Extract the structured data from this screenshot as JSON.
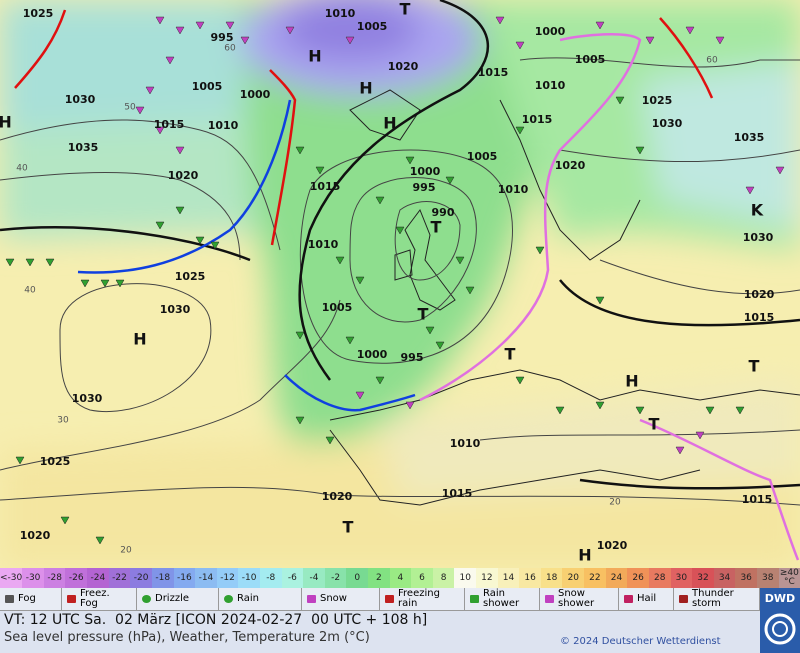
{
  "map": {
    "isobar_labels": [
      1025,
      1010,
      1005,
      995,
      1000,
      1020,
      1015,
      1005,
      1005,
      1000,
      1030,
      1010,
      1025,
      1010,
      1015,
      1015,
      1030,
      1035,
      1035,
      1020,
      1005,
      1000,
      995,
      1020,
      1015,
      1010,
      990,
      1030,
      1010,
      1025,
      1030,
      1005,
      1020,
      1015,
      1000,
      995,
      1030,
      1010,
      1025,
      1015,
      1020,
      1015,
      1020,
      1020
    ],
    "center_labels": [
      "T",
      "H",
      "H",
      "H",
      "H",
      "T",
      "T",
      "T",
      "H",
      "T",
      "T",
      "T",
      "H",
      "K",
      "H"
    ],
    "graticule_labels": [
      60,
      50,
      40,
      40,
      30,
      20,
      20,
      60
    ]
  },
  "temperature_scale": {
    "low_label": "<-30",
    "high_label": "≥40 °C",
    "values": [
      -30,
      -28,
      -26,
      -24,
      -22,
      -20,
      -18,
      -16,
      -14,
      -12,
      -10,
      -8,
      -6,
      -4,
      -2,
      0,
      2,
      4,
      6,
      8,
      10,
      12,
      14,
      16,
      18,
      20,
      22,
      24,
      26,
      28,
      30,
      32,
      34,
      36,
      38
    ],
    "low_color": "#eaa8f2",
    "high_color": "#b89494",
    "colors": [
      "#dc90ea",
      "#cc80e2",
      "#c070da",
      "#b464d2",
      "#a070d8",
      "#8c7ce0",
      "#8094e8",
      "#84aaf0",
      "#8cbcf2",
      "#94ccf8",
      "#9cdcf8",
      "#a4ecf0",
      "#aaf2e0",
      "#98eac2",
      "#88e2aa",
      "#78da92",
      "#82e282",
      "#9aea84",
      "#b2f094",
      "#caf2a6",
      "#fafaee",
      "#f8f8d2",
      "#f8f0ba",
      "#f8e8a2",
      "#f8e08a",
      "#f8d072",
      "#f8c062",
      "#f2aa5a",
      "#f09258",
      "#e87a60",
      "#e06262",
      "#d85258",
      "#c86262",
      "#c07262",
      "#b88272"
    ]
  },
  "legend": [
    "Fog",
    "Freez. Fog",
    "Drizzle",
    "Rain",
    "Snow",
    "Freezing rain",
    "Rain shower",
    "Snow shower",
    "Hail",
    "Thunder storm"
  ],
  "footer": {
    "valid_time": "VT: 12 UTC Sa.  02 März [ICON 2024-02-27  00 UTC + 108 h]",
    "description": "Sea level pressure (hPa), Weather, Temperature 2m (°C)",
    "copyright": "© 2024 Deutscher Wetterdienst",
    "logo": "DWD"
  }
}
